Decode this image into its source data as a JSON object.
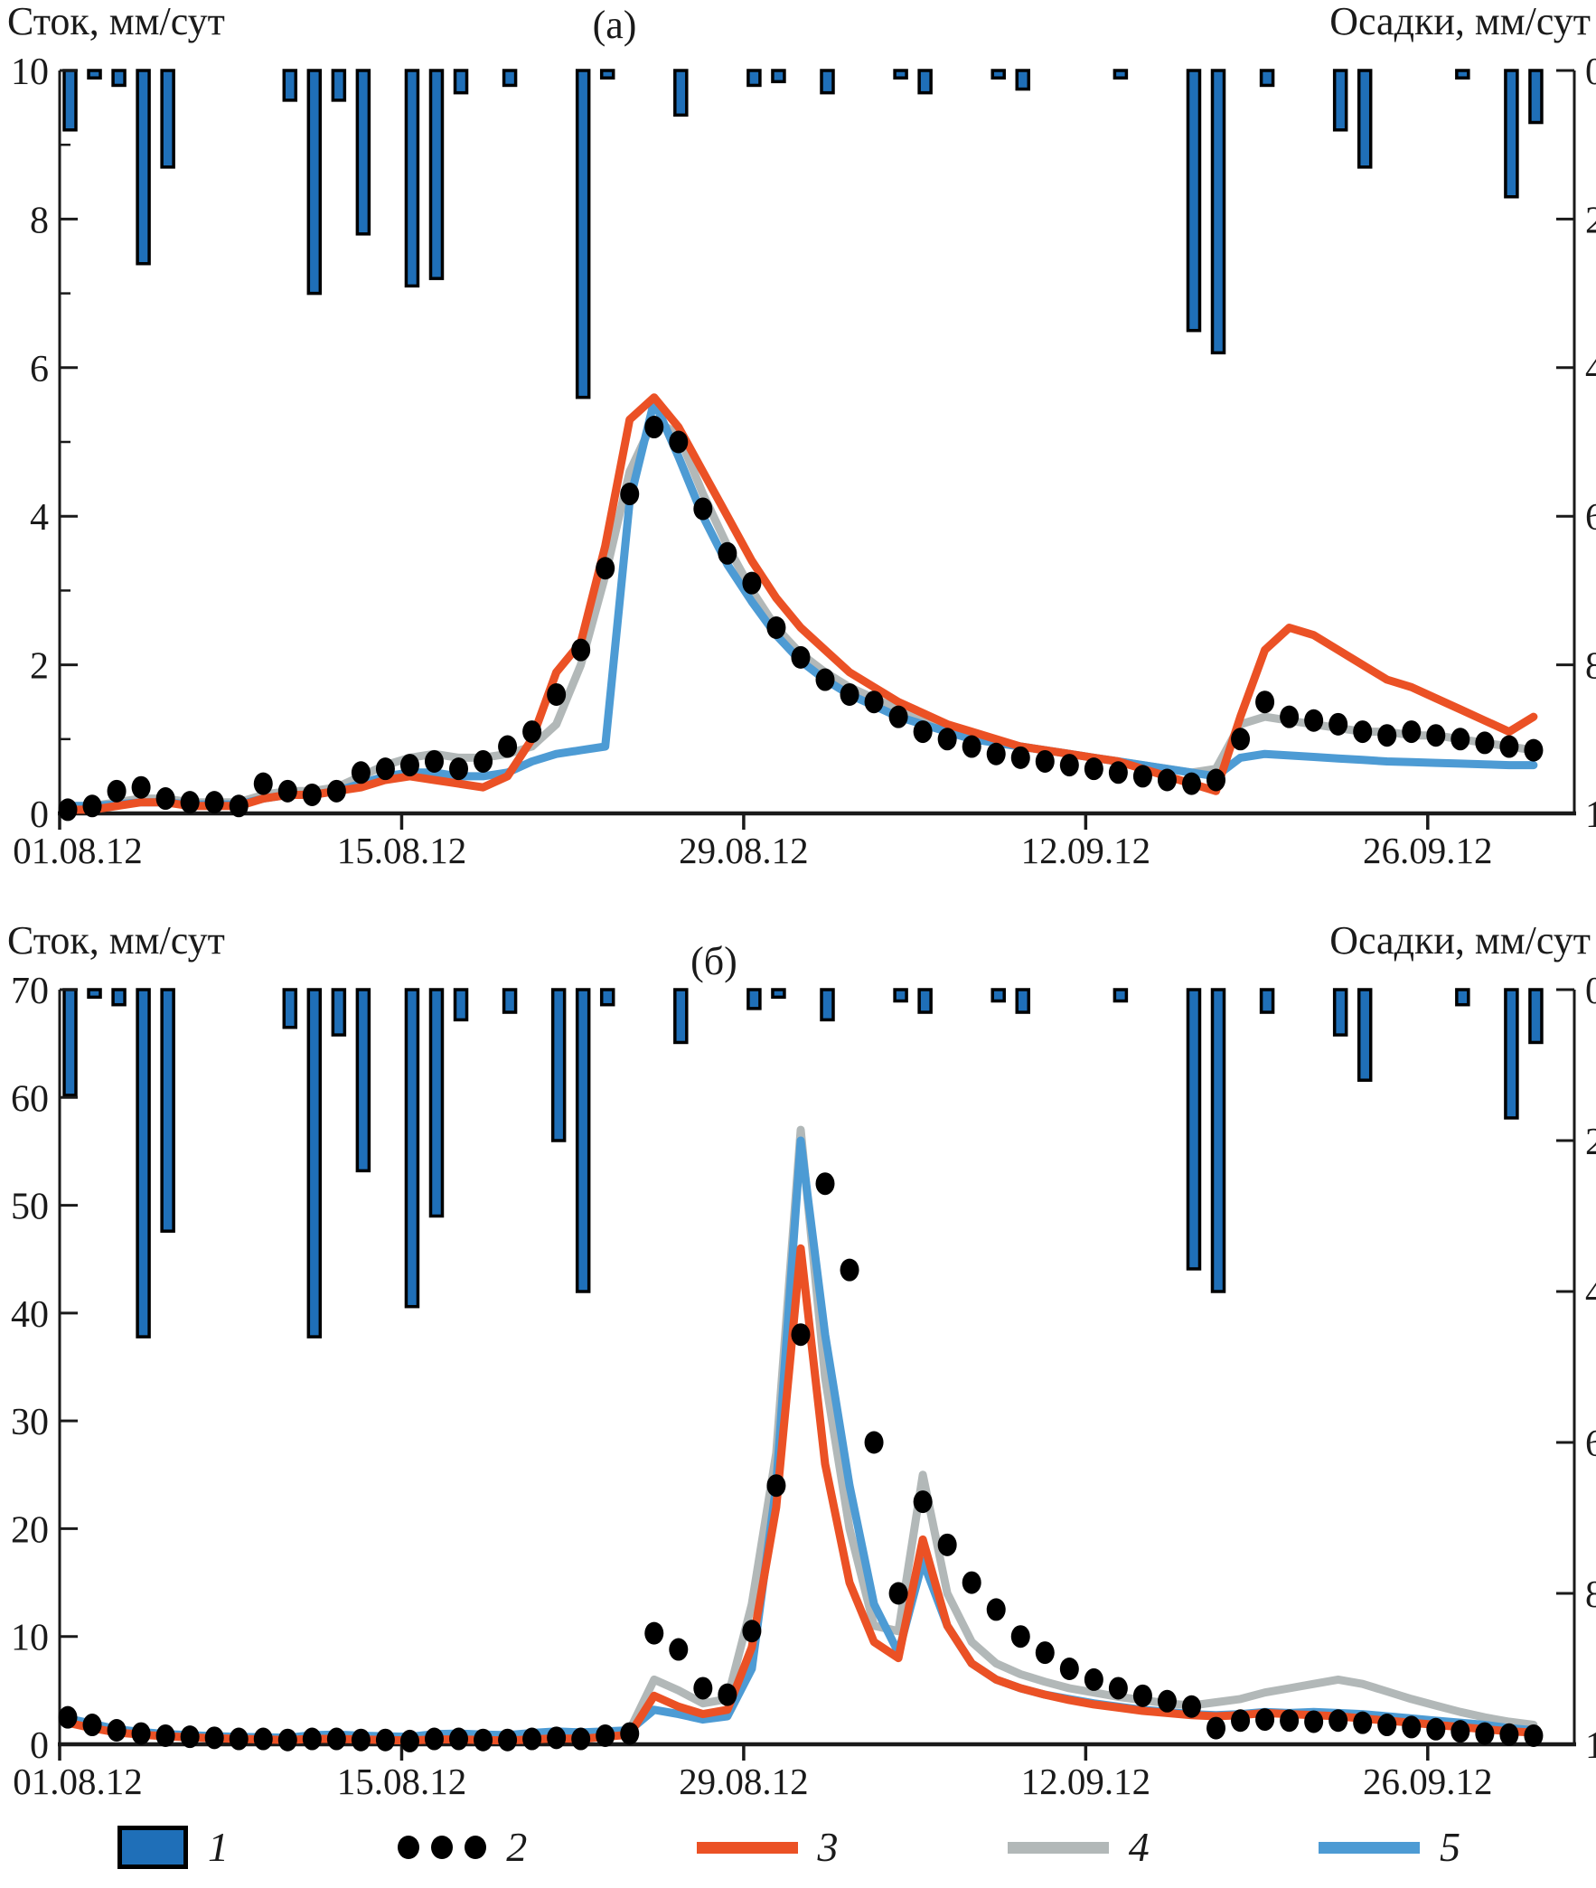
{
  "colors": {
    "bar_fill": "#1F6FB8",
    "bar_stroke": "#000000",
    "obs_dot": "#000000",
    "line3": "#EB5125",
    "line4": "#B2B8B8",
    "line5": "#4D9BD4",
    "axis": "#1a1a1a",
    "text": "#1a1a1a"
  },
  "legend": {
    "items": [
      {
        "label": "1",
        "type": "bar",
        "name": "precipitation"
      },
      {
        "label": "2",
        "type": "dots",
        "name": "observed-runoff"
      },
      {
        "label": "3",
        "type": "line",
        "color_key": "line3",
        "name": "model-3"
      },
      {
        "label": "4",
        "type": "line",
        "color_key": "line4",
        "name": "model-4"
      },
      {
        "label": "5",
        "type": "line",
        "color_key": "line5",
        "name": "model-5"
      }
    ]
  },
  "chart_data": [
    {
      "id": "a",
      "type": "line",
      "title": "(а)",
      "left_axis_title": "Сток, мм/сут",
      "right_axis_title": "Осадки, мм/сут",
      "left_axis_range": [
        0,
        10
      ],
      "left_tick_labels": [
        "10",
        "8",
        "6",
        "4",
        "2",
        "0"
      ],
      "left_tick_values": [
        10,
        8,
        6,
        4,
        2,
        0
      ],
      "left_minor_step": 1,
      "right_axis_range": [
        0,
        100
      ],
      "right_tick_labels": [
        "0",
        "20",
        "40",
        "60",
        "80",
        "100"
      ],
      "right_tick_values": [
        0,
        20,
        40,
        60,
        80,
        100
      ],
      "x_tick_labels": [
        "01.08.12",
        "15.08.12",
        "29.08.12",
        "12.09.12",
        "26.09.12"
      ],
      "x_tick_days": [
        0,
        14,
        28,
        42,
        56
      ],
      "days_total": 62,
      "precip_mm_per_day": [
        [
          0,
          8
        ],
        [
          1,
          1
        ],
        [
          2,
          2
        ],
        [
          3,
          26
        ],
        [
          4,
          13
        ],
        [
          9,
          4
        ],
        [
          10,
          30
        ],
        [
          11,
          4
        ],
        [
          12,
          22
        ],
        [
          14,
          29
        ],
        [
          15,
          28
        ],
        [
          16,
          3
        ],
        [
          18,
          2
        ],
        [
          21,
          44
        ],
        [
          22,
          1
        ],
        [
          25,
          6
        ],
        [
          28,
          2
        ],
        [
          29,
          1.5
        ],
        [
          31,
          3
        ],
        [
          34,
          1
        ],
        [
          35,
          3
        ],
        [
          38,
          1
        ],
        [
          39,
          2.5
        ],
        [
          43,
          1
        ],
        [
          46,
          35
        ],
        [
          47,
          38
        ],
        [
          49,
          2
        ],
        [
          52,
          8
        ],
        [
          53,
          13
        ],
        [
          57,
          1
        ],
        [
          59,
          17
        ],
        [
          60,
          7
        ]
      ],
      "series": [
        {
          "name": "observed",
          "style": "dots",
          "values": [
            0.05,
            0.1,
            0.3,
            0.35,
            0.2,
            0.15,
            0.15,
            0.1,
            0.4,
            0.3,
            0.25,
            0.3,
            0.55,
            0.6,
            0.65,
            0.7,
            0.6,
            0.7,
            0.9,
            1.1,
            1.6,
            2.2,
            3.3,
            4.3,
            5.2,
            5.0,
            4.1,
            3.5,
            3.1,
            2.5,
            2.1,
            1.8,
            1.6,
            1.5,
            1.3,
            1.1,
            1.0,
            0.9,
            0.8,
            0.75,
            0.7,
            0.65,
            0.6,
            0.55,
            0.5,
            0.45,
            0.4,
            0.45,
            1.0,
            1.5,
            1.3,
            1.25,
            1.2,
            1.1,
            1.05,
            1.1,
            1.05,
            1.0,
            0.95,
            0.9,
            0.85
          ]
        },
        {
          "name": "model-4",
          "style": "line",
          "color_key": "line4",
          "values": [
            0.1,
            0.1,
            0.15,
            0.2,
            0.2,
            0.15,
            0.15,
            0.15,
            0.25,
            0.3,
            0.3,
            0.35,
            0.5,
            0.65,
            0.75,
            0.8,
            0.75,
            0.75,
            0.8,
            0.9,
            1.2,
            2.0,
            3.2,
            4.6,
            5.3,
            5.1,
            4.3,
            3.6,
            3.0,
            2.5,
            2.15,
            1.9,
            1.7,
            1.55,
            1.4,
            1.25,
            1.15,
            1.05,
            0.95,
            0.9,
            0.85,
            0.8,
            0.75,
            0.7,
            0.65,
            0.6,
            0.55,
            0.6,
            1.2,
            1.3,
            1.25,
            1.2,
            1.15,
            1.1,
            1.1,
            1.05,
            1.05,
            1.0,
            0.95,
            0.9,
            0.85
          ]
        },
        {
          "name": "model-5",
          "style": "line",
          "color_key": "line5",
          "values": [
            0.1,
            0.1,
            0.12,
            0.15,
            0.15,
            0.12,
            0.12,
            0.12,
            0.2,
            0.25,
            0.25,
            0.3,
            0.4,
            0.5,
            0.55,
            0.55,
            0.5,
            0.5,
            0.55,
            0.7,
            0.8,
            0.85,
            0.9,
            4.2,
            5.55,
            4.8,
            4.0,
            3.35,
            2.85,
            2.4,
            2.05,
            1.8,
            1.6,
            1.45,
            1.3,
            1.2,
            1.1,
            1.0,
            0.95,
            0.9,
            0.85,
            0.8,
            0.75,
            0.7,
            0.65,
            0.6,
            0.55,
            0.5,
            0.75,
            0.8,
            0.78,
            0.76,
            0.74,
            0.72,
            0.7,
            0.69,
            0.68,
            0.67,
            0.66,
            0.65,
            0.65
          ]
        },
        {
          "name": "model-3",
          "style": "line",
          "color_key": "line3",
          "values": [
            0.05,
            0.05,
            0.1,
            0.15,
            0.15,
            0.1,
            0.1,
            0.1,
            0.2,
            0.25,
            0.25,
            0.3,
            0.35,
            0.45,
            0.5,
            0.45,
            0.4,
            0.35,
            0.5,
            1.0,
            1.9,
            2.3,
            3.6,
            5.3,
            5.6,
            5.2,
            4.6,
            4.0,
            3.4,
            2.9,
            2.5,
            2.2,
            1.9,
            1.7,
            1.5,
            1.35,
            1.2,
            1.1,
            1.0,
            0.9,
            0.85,
            0.8,
            0.75,
            0.7,
            0.6,
            0.5,
            0.4,
            0.3,
            1.3,
            2.2,
            2.5,
            2.4,
            2.2,
            2.0,
            1.8,
            1.7,
            1.55,
            1.4,
            1.25,
            1.1,
            1.3
          ]
        }
      ]
    },
    {
      "id": "b",
      "type": "line",
      "title": "(б)",
      "left_axis_title": "Сток, мм/сут",
      "right_axis_title": "Осадки, мм/сут",
      "left_axis_range": [
        0,
        70
      ],
      "left_tick_labels": [
        "70",
        "60",
        "50",
        "40",
        "30",
        "20",
        "10",
        "0"
      ],
      "left_tick_values": [
        70,
        60,
        50,
        40,
        30,
        20,
        10,
        0
      ],
      "left_minor_step": 0,
      "right_axis_range": [
        0,
        100
      ],
      "right_tick_labels": [
        "0",
        "20",
        "40",
        "60",
        "80",
        "100"
      ],
      "right_tick_values": [
        0,
        20,
        40,
        60,
        80,
        100
      ],
      "x_tick_labels": [
        "01.08.12",
        "15.08.12",
        "29.08.12",
        "12.09.12",
        "26.09.12"
      ],
      "x_tick_days": [
        0,
        14,
        28,
        42,
        56
      ],
      "days_total": 62,
      "precip_mm_per_day": [
        [
          0,
          14
        ],
        [
          1,
          1
        ],
        [
          2,
          2
        ],
        [
          3,
          46
        ],
        [
          4,
          32
        ],
        [
          9,
          5
        ],
        [
          10,
          46
        ],
        [
          11,
          6
        ],
        [
          12,
          24
        ],
        [
          14,
          42
        ],
        [
          15,
          30
        ],
        [
          16,
          4
        ],
        [
          18,
          3
        ],
        [
          20,
          20
        ],
        [
          21,
          40
        ],
        [
          22,
          2
        ],
        [
          25,
          7
        ],
        [
          28,
          2.5
        ],
        [
          29,
          1
        ],
        [
          31,
          4
        ],
        [
          34,
          1.5
        ],
        [
          35,
          3
        ],
        [
          38,
          1.5
        ],
        [
          39,
          3
        ],
        [
          43,
          1.5
        ],
        [
          46,
          37
        ],
        [
          47,
          40
        ],
        [
          49,
          3
        ],
        [
          52,
          6
        ],
        [
          53,
          12
        ],
        [
          57,
          2
        ],
        [
          59,
          17
        ],
        [
          60,
          7
        ]
      ],
      "series": [
        {
          "name": "observed",
          "style": "dots",
          "values": [
            2.5,
            1.8,
            1.3,
            1.0,
            0.8,
            0.7,
            0.6,
            0.5,
            0.5,
            0.4,
            0.5,
            0.5,
            0.4,
            0.4,
            0.3,
            0.5,
            0.5,
            0.4,
            0.4,
            0.5,
            0.6,
            0.5,
            0.8,
            1.0,
            10.3,
            8.8,
            5.2,
            4.6,
            10.5,
            24,
            38,
            52,
            44,
            28,
            14,
            22.5,
            18.5,
            15,
            12.5,
            10,
            8.5,
            7,
            6,
            5.2,
            4.5,
            4,
            3.5,
            1.5,
            2.2,
            2.3,
            2.2,
            2.1,
            2.2,
            2.0,
            1.8,
            1.6,
            1.4,
            1.2,
            1.0,
            0.9,
            0.8
          ]
        },
        {
          "name": "model-4",
          "style": "line",
          "color_key": "line4",
          "values": [
            2.3,
            1.8,
            1.4,
            1.1,
            0.95,
            0.85,
            0.75,
            0.7,
            0.65,
            0.6,
            0.8,
            0.85,
            0.75,
            0.7,
            0.65,
            0.85,
            0.9,
            0.8,
            0.75,
            0.95,
            1.1,
            1.0,
            1.1,
            1.3,
            6.0,
            5.0,
            3.8,
            4.2,
            13,
            27,
            57,
            34,
            20,
            11,
            10.5,
            25,
            14,
            9.5,
            7.5,
            6.5,
            5.8,
            5.2,
            4.8,
            4.4,
            4.1,
            3.8,
            3.6,
            3.9,
            4.2,
            4.8,
            5.2,
            5.6,
            6.0,
            5.6,
            4.9,
            4.2,
            3.6,
            3.0,
            2.5,
            2.1,
            1.8
          ]
        },
        {
          "name": "model-5",
          "style": "line",
          "color_key": "line5",
          "values": [
            2.4,
            1.9,
            1.4,
            1.15,
            0.95,
            0.85,
            0.75,
            0.7,
            0.65,
            0.6,
            0.85,
            0.9,
            0.8,
            0.75,
            0.7,
            0.95,
            1.0,
            0.9,
            0.85,
            1.05,
            1.2,
            1.1,
            1.2,
            1.3,
            3.2,
            2.8,
            2.3,
            2.6,
            7,
            24,
            56,
            38,
            24,
            13,
            8.5,
            17,
            11,
            7.5,
            6,
            5.2,
            4.6,
            4.2,
            3.8,
            3.5,
            3.2,
            3.0,
            2.8,
            2.7,
            2.8,
            3.0,
            2.9,
            3.0,
            2.9,
            2.8,
            2.6,
            2.4,
            2.2,
            2.0,
            1.8,
            1.5,
            1.3
          ]
        },
        {
          "name": "model-3",
          "style": "line",
          "color_key": "line3",
          "values": [
            2.0,
            1.5,
            1.1,
            0.9,
            0.75,
            0.65,
            0.55,
            0.5,
            0.45,
            0.4,
            0.5,
            0.5,
            0.45,
            0.4,
            0.35,
            0.45,
            0.45,
            0.4,
            0.35,
            0.45,
            0.55,
            0.5,
            0.7,
            0.9,
            4.5,
            3.5,
            2.8,
            3.2,
            9,
            22,
            46,
            26,
            15,
            9.5,
            8,
            19,
            11,
            7.5,
            6,
            5.2,
            4.6,
            4.1,
            3.7,
            3.4,
            3.1,
            2.9,
            2.7,
            2.6,
            2.7,
            2.9,
            2.8,
            2.7,
            2.6,
            2.4,
            2.2,
            2.0,
            1.8,
            1.6,
            1.4,
            1.2,
            1.1
          ]
        }
      ]
    }
  ]
}
